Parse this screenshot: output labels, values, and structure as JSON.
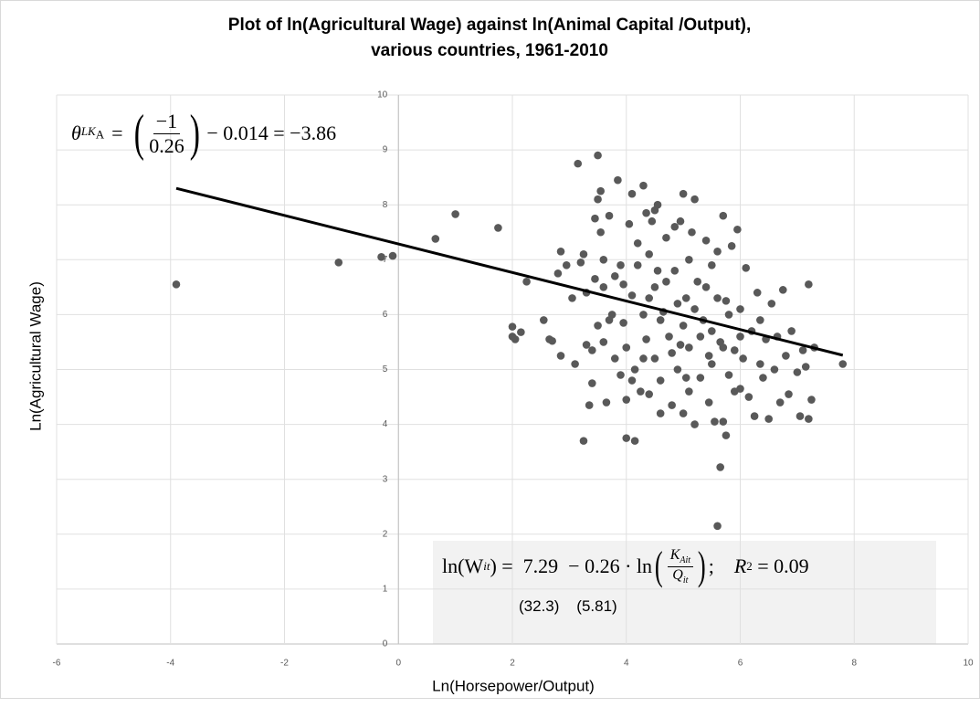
{
  "chart_data": {
    "type": "scatter",
    "title": "Plot of ln(Agricultural Wage) against ln(Animal Capital /Output),",
    "subtitle": "various countries, 1961-2010",
    "x_label": "Ln(Horsepower/Output)",
    "y_label": "Ln(Agricultural Wage)",
    "xlim": [
      -6,
      10
    ],
    "ylim": [
      0,
      10
    ],
    "xticks": [
      -6,
      -4,
      -2,
      0,
      2,
      4,
      6,
      8,
      10
    ],
    "yticks": [
      0,
      1,
      2,
      3,
      4,
      5,
      6,
      7,
      8,
      9,
      10
    ],
    "grid": true,
    "color": "#595959",
    "x": [
      -3.9,
      -1.05,
      -0.3,
      -0.1,
      0.65,
      1.0,
      1.75,
      2.0,
      2.0,
      2.05,
      2.15,
      2.25,
      2.55,
      2.65,
      2.7,
      2.8,
      2.85,
      2.85,
      2.95,
      3.05,
      3.1,
      3.15,
      3.2,
      3.25,
      3.25,
      3.3,
      3.35,
      3.4,
      3.4,
      3.45,
      3.5,
      3.5,
      3.55,
      3.55,
      3.6,
      3.6,
      3.65,
      3.7,
      3.75,
      3.8,
      3.85,
      3.9,
      3.9,
      3.95,
      4.0,
      4.0,
      4.05,
      4.1,
      4.1,
      4.15,
      4.15,
      4.2,
      4.25,
      4.3,
      4.3,
      4.35,
      4.4,
      4.4,
      4.45,
      4.5,
      4.5,
      4.55,
      4.6,
      4.65,
      4.7,
      4.75,
      4.8,
      4.85,
      4.9,
      4.95,
      5.0,
      5.0,
      5.05,
      5.1,
      5.15,
      5.2,
      5.2,
      5.25,
      5.3,
      5.35,
      5.4,
      5.45,
      5.5,
      5.5,
      5.55,
      5.6,
      5.6,
      5.65,
      5.65,
      5.7,
      5.7,
      5.75,
      5.75,
      5.8,
      5.85,
      5.9,
      5.95,
      6.0,
      6.0,
      6.05,
      6.1,
      6.15,
      6.2,
      6.25,
      6.3,
      6.35,
      6.4,
      6.45,
      6.5,
      6.55,
      6.6,
      6.65,
      6.7,
      6.75,
      6.8,
      6.85,
      6.9,
      7.0,
      7.05,
      7.1,
      7.15,
      7.2,
      7.2,
      7.25,
      7.3,
      7.8,
      3.3,
      3.6,
      3.7,
      3.8,
      4.0,
      4.2,
      4.3,
      4.4,
      4.5,
      4.6,
      4.7,
      4.8,
      4.9,
      5.0,
      5.1,
      5.2,
      5.3,
      5.4,
      5.5,
      5.6,
      5.7,
      5.8,
      5.9,
      6.0,
      4.1,
      4.6,
      5.1,
      3.5,
      4.35,
      4.85,
      4.95,
      5.05,
      3.95,
      4.55,
      5.45,
      6.35,
      3.45
    ],
    "values": [
      6.55,
      6.95,
      7.05,
      7.07,
      7.38,
      7.83,
      7.58,
      5.78,
      5.6,
      5.55,
      5.68,
      6.6,
      5.9,
      5.55,
      5.52,
      6.75,
      5.25,
      7.15,
      6.9,
      6.3,
      5.1,
      8.75,
      6.95,
      7.1,
      3.7,
      5.45,
      4.35,
      4.75,
      5.35,
      6.65,
      8.9,
      8.1,
      8.25,
      7.5,
      6.5,
      5.5,
      4.4,
      7.8,
      6.0,
      5.2,
      8.45,
      4.9,
      6.9,
      5.85,
      3.75,
      4.45,
      7.65,
      8.2,
      6.35,
      3.7,
      5.0,
      7.3,
      4.6,
      8.35,
      6.0,
      5.55,
      7.1,
      4.55,
      7.7,
      6.5,
      5.2,
      8.0,
      4.8,
      6.05,
      7.4,
      5.6,
      4.35,
      6.8,
      5.0,
      7.7,
      8.2,
      4.2,
      6.3,
      5.4,
      7.5,
      4.0,
      8.1,
      6.6,
      4.85,
      5.9,
      7.35,
      4.4,
      6.9,
      5.1,
      4.05,
      7.15,
      2.15,
      3.22,
      5.5,
      4.05,
      7.8,
      3.8,
      6.25,
      4.9,
      7.25,
      5.35,
      7.55,
      4.65,
      6.1,
      5.2,
      6.85,
      4.5,
      5.7,
      4.15,
      6.4,
      5.1,
      4.85,
      5.55,
      4.1,
      6.2,
      5.0,
      5.6,
      4.4,
      6.45,
      5.25,
      4.55,
      5.7,
      4.95,
      4.15,
      5.35,
      5.05,
      4.1,
      6.55,
      4.45,
      5.4,
      5.1,
      6.4,
      7.0,
      5.9,
      6.7,
      5.4,
      6.9,
      5.2,
      6.3,
      7.9,
      5.9,
      6.6,
      5.3,
      6.2,
      5.8,
      7.0,
      6.1,
      5.6,
      6.5,
      5.7,
      6.3,
      5.4,
      6.0,
      4.6,
      5.6,
      4.8,
      4.2,
      4.6,
      5.8,
      7.85,
      7.6,
      5.45,
      4.85,
      6.55,
      6.8,
      5.25,
      5.9,
      7.75
    ],
    "trendline": {
      "x": [
        -3.9,
        7.8
      ],
      "y": [
        8.3,
        5.26
      ]
    },
    "annotations": {
      "theta": {
        "symbol": "θ",
        "sub": "LK",
        "subsub": "A",
        "eq": "=",
        "open": "(",
        "num": "−1",
        "den": "0.26",
        "close": ")",
        "rest": "− 0.014 = −3.86"
      },
      "regression": {
        "lhs": "ln(W",
        "lhs_sub": "it",
        "mid": ") =  7.29  − 0.26 · ln",
        "open": "(",
        "num": "K",
        "num_sub": "Ait",
        "den": "Q",
        "den_sub": "it",
        "close": ")",
        "tail": ";",
        "r": "R",
        "r_sup": "2",
        "r_val": " = 0.09",
        "se": "(32.3)    (5.81)"
      }
    }
  }
}
